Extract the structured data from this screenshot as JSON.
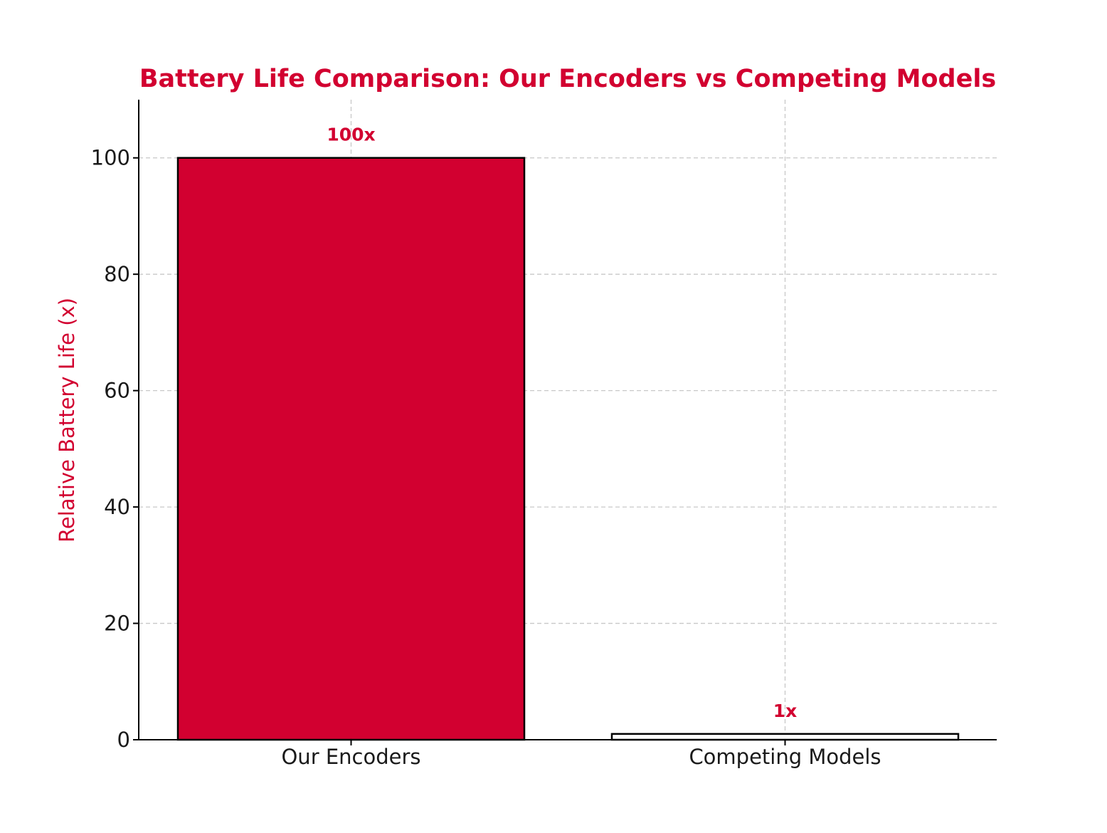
{
  "chart_data": {
    "type": "bar",
    "title": "Battery Life Comparison: Our Encoders vs Competing Models",
    "xlabel": "",
    "ylabel": "Relative Battery Life (x)",
    "categories": [
      "Our Encoders",
      "Competing Models"
    ],
    "values": [
      100,
      1
    ],
    "data_labels": [
      "100x",
      "1x"
    ],
    "bar_colors": [
      "#d20030",
      "#ffffff"
    ],
    "bar_edge_color": "#000000",
    "ylim": [
      0,
      110
    ],
    "yticks": [
      0,
      20,
      40,
      60,
      80,
      100
    ],
    "ytick_labels": [
      "0",
      "20",
      "40",
      "60",
      "80",
      "100"
    ],
    "grid": true,
    "accent_color": "#d20030"
  }
}
